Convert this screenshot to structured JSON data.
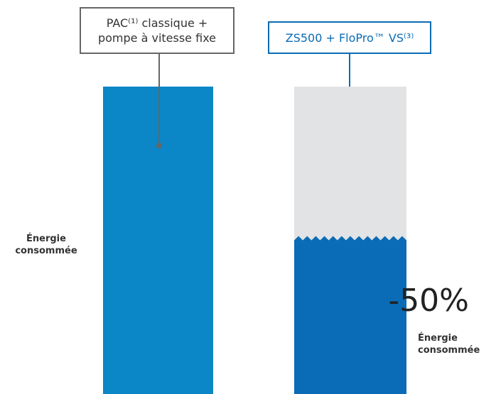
{
  "chart_data": {
    "type": "bar",
    "categories": [
      "PAC⁽¹⁾ classique +\npompe à vitesse fixe",
      "ZS500 + FloPro™ VS⁽³⁾"
    ],
    "values": [
      100,
      50
    ],
    "colors": [
      "#0b86c7",
      "#0a6cb6"
    ],
    "remainder_color": "#e2e3e5",
    "ylim": [
      0,
      100
    ],
    "y_label": "Énergie consommée",
    "annotation": {
      "value": -50,
      "label": "-50%"
    },
    "annotation_caption": "Énergie consommée"
  }
}
